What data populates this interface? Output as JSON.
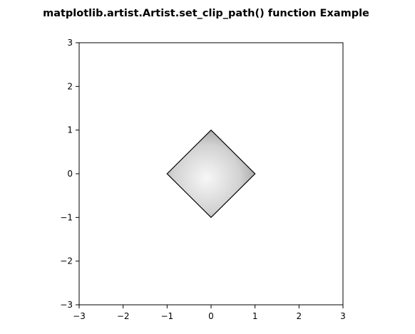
{
  "chart_data": {
    "type": "area",
    "title": "matplotlib.artist.Artist.set_clip_path() function Example",
    "xlabel": "",
    "ylabel": "",
    "xlim": [
      -3,
      3
    ],
    "ylim": [
      -3,
      3
    ],
    "xticks": [
      -3,
      -2,
      -1,
      0,
      1,
      2,
      3
    ],
    "yticks": [
      -3,
      -2,
      -1,
      0,
      1,
      2,
      3
    ],
    "xtick_labels": [
      "−3",
      "−2",
      "−1",
      "0",
      "1",
      "2",
      "3"
    ],
    "ytick_labels": [
      "−3",
      "−2",
      "−1",
      "0",
      "1",
      "2",
      "3"
    ],
    "grid": false,
    "clip_path": {
      "shape": "diamond",
      "vertices": [
        [
          0,
          1
        ],
        [
          1,
          0
        ],
        [
          0,
          -1
        ],
        [
          -1,
          0
        ]
      ],
      "edge_color": "#000000",
      "fill": "radial gray gradient (lightest near origin, darker toward edges)",
      "gradient_center": [
        -0.1,
        -0.1
      ],
      "gradient_light": "#f7f7f7",
      "gradient_dark": "#8c8c8c"
    }
  }
}
